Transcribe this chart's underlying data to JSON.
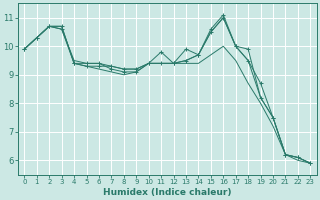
{
  "title": "",
  "xlabel": "Humidex (Indice chaleur)",
  "ylabel": "",
  "xlim": [
    -0.5,
    23.5
  ],
  "ylim": [
    5.5,
    11.5
  ],
  "yticks": [
    6,
    7,
    8,
    9,
    10,
    11
  ],
  "xticks": [
    0,
    1,
    2,
    3,
    4,
    5,
    6,
    7,
    8,
    9,
    10,
    11,
    12,
    13,
    14,
    15,
    16,
    17,
    18,
    19,
    20,
    21,
    22,
    23
  ],
  "bg_color": "#cce8e4",
  "grid_color": "#ffffff",
  "line_color": "#2a7a6a",
  "lines_with_markers": [
    [
      9.9,
      10.3,
      10.7,
      10.7,
      9.4,
      9.4,
      9.4,
      9.2,
      9.1,
      9.1,
      9.4,
      9.8,
      9.4,
      9.9,
      9.7,
      10.6,
      11.1,
      10.0,
      9.9,
      8.2,
      7.5,
      6.2,
      6.1,
      5.9
    ],
    [
      9.9,
      10.3,
      10.7,
      10.6,
      9.4,
      9.3,
      9.3,
      9.3,
      9.2,
      9.2,
      9.4,
      9.4,
      9.4,
      9.5,
      9.7,
      10.5,
      11.0,
      10.0,
      9.5,
      8.7,
      7.5,
      6.2,
      6.1,
      5.9
    ]
  ],
  "lines_smooth": [
    [
      9.9,
      10.3,
      10.7,
      10.7,
      9.4,
      9.3,
      9.2,
      9.1,
      9.0,
      9.1,
      9.4,
      9.4,
      9.4,
      9.4,
      9.4,
      9.7,
      10.0,
      9.5,
      8.7,
      8.0,
      7.2,
      6.2,
      6.0,
      5.9
    ],
    [
      9.9,
      10.3,
      10.7,
      10.6,
      9.5,
      9.4,
      9.4,
      9.3,
      9.2,
      9.2,
      9.4,
      9.4,
      9.4,
      9.5,
      9.7,
      10.5,
      11.0,
      10.0,
      9.5,
      8.2,
      7.5,
      6.2,
      6.1,
      5.9
    ]
  ],
  "figsize": [
    3.2,
    2.0
  ],
  "dpi": 100
}
